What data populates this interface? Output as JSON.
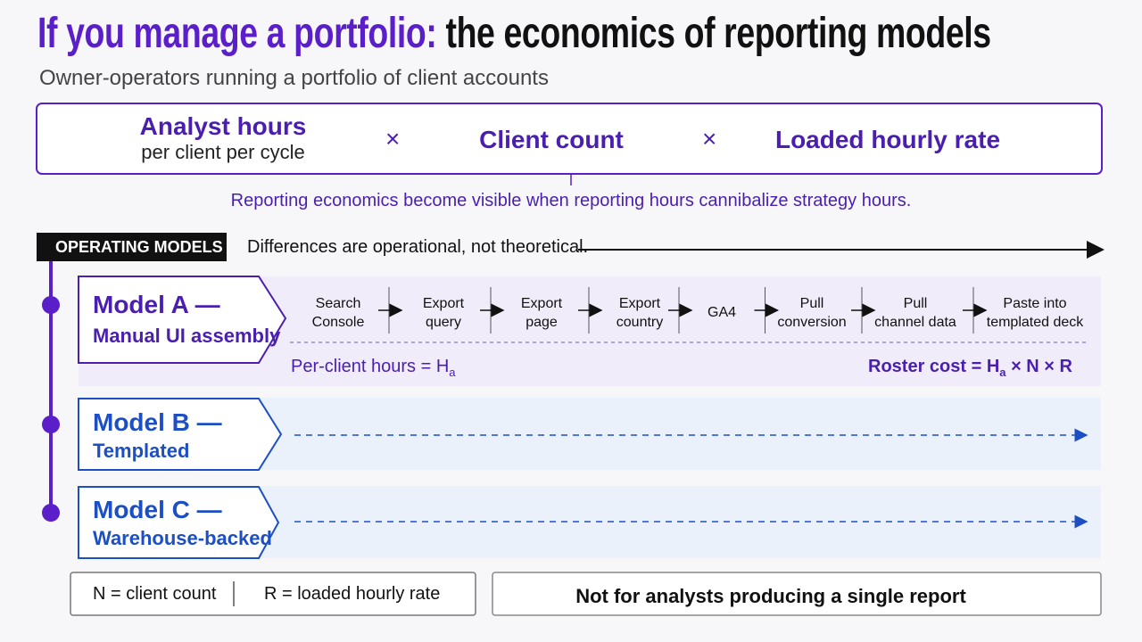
{
  "title": {
    "highlight": "If you manage a portfolio:",
    "rest": "the economics of reporting models"
  },
  "subtitle": "Owner-operators running a portfolio of client accounts",
  "formula": {
    "terms": [
      {
        "label": "Analyst hours",
        "sub": "per client per cycle"
      },
      {
        "label": "Client count"
      },
      {
        "label": "Loaded hourly rate"
      }
    ],
    "operators": [
      "×",
      "×"
    ],
    "note": "Reporting economics become visible when reporting hours cannibalize strategy hours."
  },
  "section": {
    "tag": "OPERATING MODELS",
    "caption": "Differences are operational, not theoretical."
  },
  "models": [
    {
      "name": "Model A —",
      "subtitle": "Manual UI assembly",
      "steps": [
        [
          "Search",
          "Console"
        ],
        [
          "Export",
          "query"
        ],
        [
          "Export",
          "page"
        ],
        [
          "Export",
          "country"
        ],
        [
          "GA4"
        ],
        [
          "Pull",
          "conversion"
        ],
        [
          "Pull",
          "channel data"
        ],
        [
          "Paste into",
          "templated deck"
        ]
      ],
      "per_client": {
        "text": "Per-client hours = H",
        "sub": "a"
      },
      "roster": {
        "text": "Roster cost = H",
        "sub": "a",
        "tail": " × N × R"
      }
    },
    {
      "name": "Model B —",
      "subtitle": "Templated"
    },
    {
      "name": "Model C —",
      "subtitle": "Warehouse-backed"
    }
  ],
  "legend": [
    "N = client count",
    "R = loaded hourly rate"
  ],
  "footer_note": "Not for analysts producing a single report"
}
